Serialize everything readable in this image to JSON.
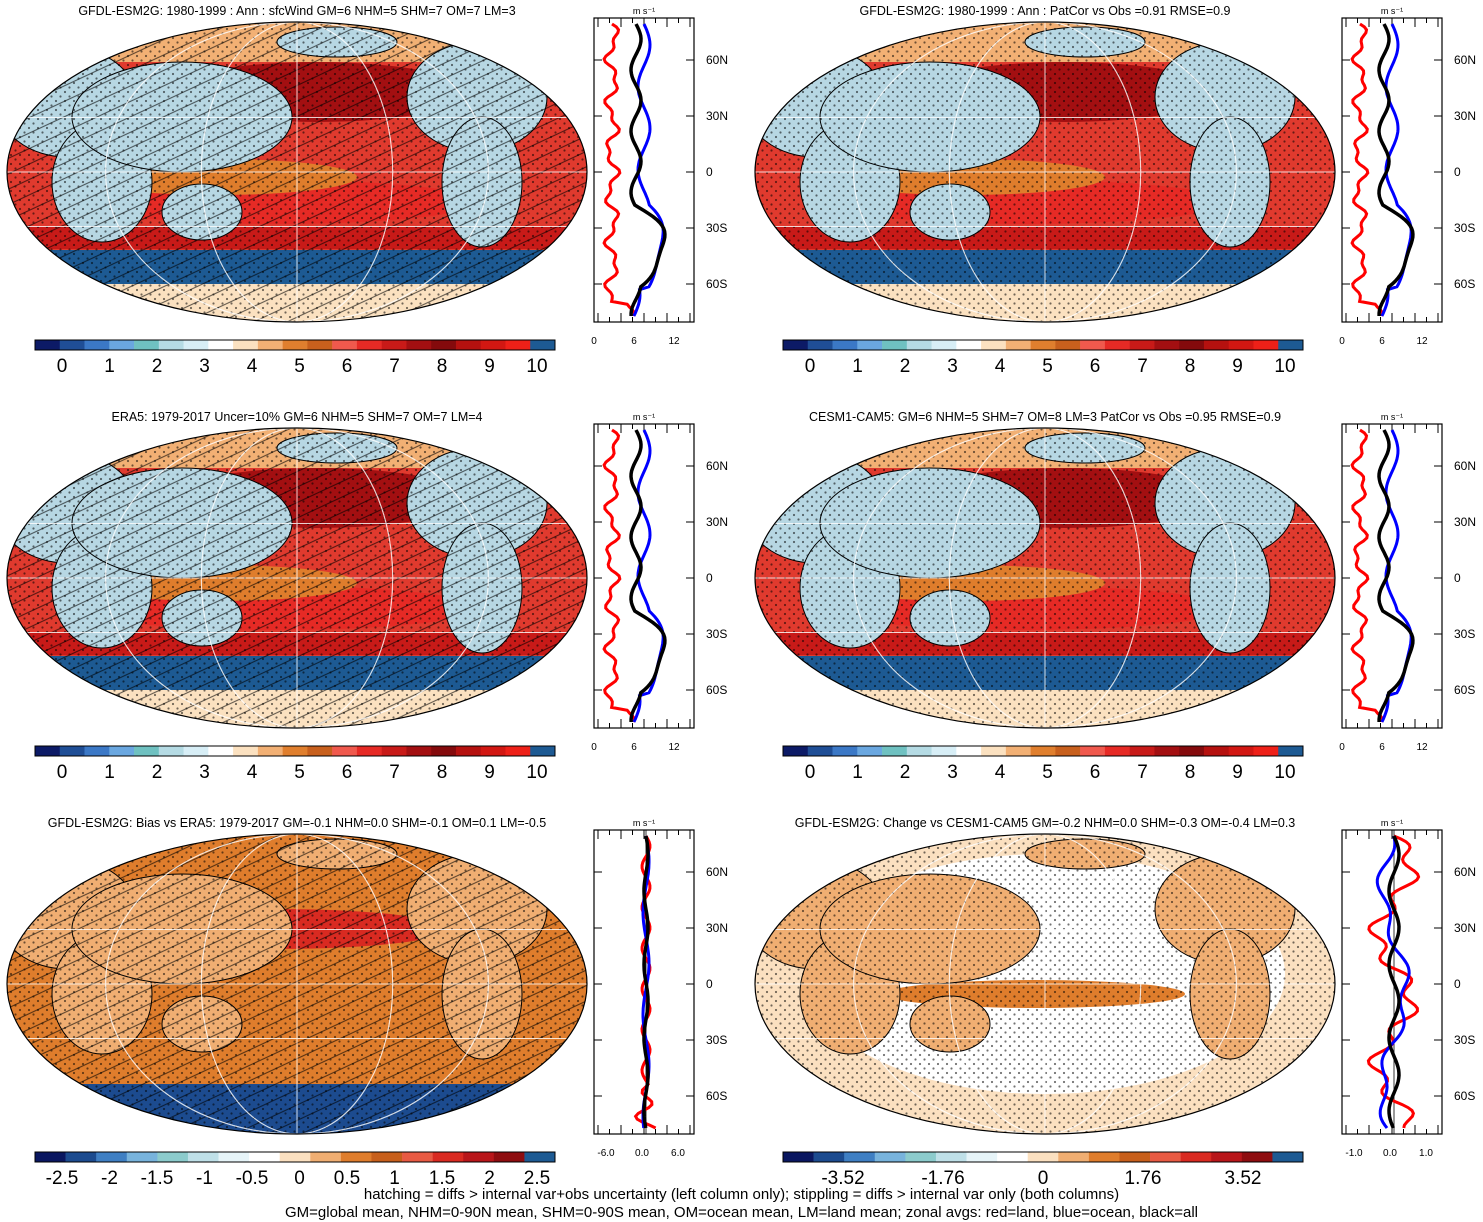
{
  "panels": [
    {
      "id": "p1",
      "title": "GFDL-ESM2G: 1980-1999 : Ann : sfcWind GM=6 NHM=5 SHM=7 OM=7 LM=3",
      "colorbar_labels": [
        "0",
        "1",
        "2",
        "3",
        "4",
        "5",
        "6",
        "7",
        "8",
        "9",
        "10"
      ],
      "profile_xticks": [
        "0",
        "6",
        "12"
      ],
      "hatched": true
    },
    {
      "id": "p2",
      "title": "GFDL-ESM2G: 1980-1999 : Ann : PatCor vs Obs =0.91 RMSE=0.9",
      "colorbar_labels": [
        "0",
        "1",
        "2",
        "3",
        "4",
        "5",
        "6",
        "7",
        "8",
        "9",
        "10"
      ],
      "profile_xticks": [
        "0",
        "6",
        "12"
      ],
      "hatched": false
    },
    {
      "id": "p3",
      "title": "ERA5: 1979-2017 Uncer=10% GM=6 NHM=5 SHM=7 OM=7 LM=4",
      "colorbar_labels": [
        "0",
        "1",
        "2",
        "3",
        "4",
        "5",
        "6",
        "7",
        "8",
        "9",
        "10"
      ],
      "profile_xticks": [
        "0",
        "6",
        "12"
      ],
      "hatched": true
    },
    {
      "id": "p4",
      "title": "CESM1-CAM5: GM=6 NHM=5 SHM=7 OM=8 LM=3 PatCor vs Obs =0.95 RMSE=0.9",
      "colorbar_labels": [
        "0",
        "1",
        "2",
        "3",
        "4",
        "5",
        "6",
        "7",
        "8",
        "9",
        "10"
      ],
      "profile_xticks": [
        "0",
        "6",
        "12"
      ],
      "hatched": false
    },
    {
      "id": "p5",
      "title": "GFDL-ESM2G: Bias vs ERA5: 1979-2017 GM=-0.1 NHM=0.0 SHM=-0.1 OM=0.1 LM=-0.5",
      "colorbar_labels": [
        "-2.5",
        "-2",
        "-1.5",
        "-1",
        "-0.5",
        "0",
        "0.5",
        "1",
        "1.5",
        "2",
        "2.5"
      ],
      "profile_xticks": [
        "-6.0",
        "0.0",
        "6.0"
      ],
      "hatched": true
    },
    {
      "id": "p6",
      "title": "GFDL-ESM2G: Change vs CESM1-CAM5 GM=-0.2 NHM=0.0 SHM=-0.3 OM=-0.4 LM=0.3",
      "colorbar_labels": [
        "-3.52",
        "-1.76",
        "0",
        "1.76",
        "3.52"
      ],
      "profile_xticks": [
        "-1.0",
        "0.0",
        "1.0"
      ],
      "hatched": false
    }
  ],
  "profile_unit": "m s⁻¹",
  "lat_labels": [
    "60N",
    "30N",
    "0",
    "30S",
    "60S"
  ],
  "colors": {
    "scale_mean": [
      "#0c1a66",
      "#1f4e96",
      "#3b78c6",
      "#6aa7e0",
      "#6fc1c1",
      "#b5dbe4",
      "#d7eef6",
      "#ffffff",
      "#fbe1c0",
      "#f2b074",
      "#e07f2e",
      "#c8601d",
      "#f0594d",
      "#e62a25",
      "#c81a18",
      "#a30f11",
      "#840a0c",
      "#b5110f",
      "#d21712",
      "#ee2018",
      "#1d5a93"
    ],
    "scale_diff": [
      "#0a1760",
      "#1c4b8f",
      "#3f7fc3",
      "#78b3dc",
      "#8ccbcc",
      "#bfe0e8",
      "#e6f4f8",
      "#ffffff",
      "#fbe0c0",
      "#f0ae72",
      "#df7d2c",
      "#c75f1b",
      "#e85a43",
      "#d92a21",
      "#b8161a",
      "#8e0d10",
      "#1d5a93"
    ],
    "land_blue": "#b7d7e3",
    "ocean_red": "#e03a2e",
    "ocean_orange": "#df7d2c",
    "southern_band": "#1d5a93",
    "line_land": "#ff0000",
    "line_ocean": "#0000ff",
    "line_all": "#000000"
  },
  "footer": {
    "line1": "hatching = diffs > internal var+obs uncertainty (left column only); stippling = diffs > internal var only (both columns)",
    "line2": "GM=global mean, NHM=0-90N mean, SHM=0-90S mean, OM=ocean mean, LM=land mean; zonal avgs: red=land, blue=ocean, black=all"
  }
}
